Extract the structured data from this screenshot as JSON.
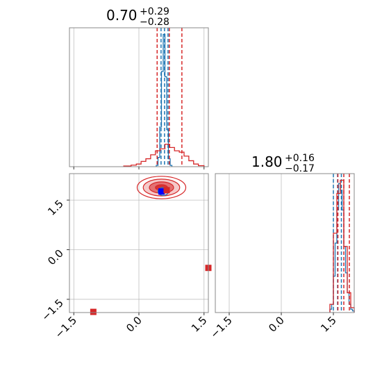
{
  "colors": {
    "red": "#d62728",
    "blue": "#1f77b4",
    "frame": "#888888"
  },
  "chart_data": [
    {
      "type": "histogram",
      "panel": "top-left",
      "parameter_index": 0,
      "title": {
        "median": "0.70",
        "plus": "+0.29",
        "minus": "−0.28"
      },
      "xlim": [
        -1.6,
        1.6
      ],
      "xticks": [
        -1.5,
        0.0,
        1.5
      ],
      "grid": true,
      "series": [
        {
          "color": "#1f77b4",
          "bin_edges": [
            0.4,
            0.44,
            0.48,
            0.52,
            0.56,
            0.6,
            0.64,
            0.68,
            0.72,
            0.76
          ],
          "heights": [
            0.01,
            0.07,
            0.3,
            0.72,
            1.0,
            0.68,
            0.28,
            0.06,
            0.01
          ],
          "quantiles": [
            0.51,
            0.59,
            0.67
          ]
        },
        {
          "color": "#d62728",
          "bin_edges": [
            -0.35,
            -0.18,
            -0.06,
            0.05,
            0.16,
            0.27,
            0.38,
            0.49,
            0.6,
            0.71,
            0.82,
            0.93,
            1.04,
            1.15,
            1.26,
            1.37,
            1.5
          ],
          "heights": [
            0.005,
            0.012,
            0.02,
            0.04,
            0.06,
            0.09,
            0.12,
            0.135,
            0.17,
            0.145,
            0.12,
            0.11,
            0.08,
            0.045,
            0.02,
            0.008
          ],
          "quantiles": [
            0.42,
            0.7,
            0.99
          ]
        }
      ]
    },
    {
      "type": "histogram",
      "panel": "bottom-right",
      "parameter_index": 1,
      "title": {
        "median": "1.80",
        "plus": "+0.16",
        "minus": "−0.17"
      },
      "xlim": [
        -1.9,
        2.1
      ],
      "xticks": [
        -1.5,
        0.0,
        1.5
      ],
      "grid": true,
      "series": [
        {
          "color": "#1f77b4",
          "bin_edges": [
            1.4,
            1.45,
            1.5,
            1.55,
            1.6,
            1.65,
            1.7,
            1.75,
            1.8,
            1.85,
            1.9,
            1.95,
            2.0,
            2.05,
            2.1
          ],
          "heights": [
            0.02,
            0.05,
            0.22,
            0.42,
            0.62,
            0.78,
            0.74,
            0.62,
            0.4,
            0.24,
            0.12,
            0.05,
            0.02,
            0.01
          ],
          "quantiles": [
            1.5,
            1.62,
            1.73
          ]
        },
        {
          "color": "#d62728",
          "bin_edges": [
            1.4,
            1.5,
            1.6,
            1.7,
            1.8,
            1.9,
            2.0,
            2.1
          ],
          "heights": [
            0.05,
            0.48,
            0.72,
            0.8,
            0.4,
            0.12,
            0.03
          ],
          "quantiles": [
            1.63,
            1.8,
            1.96
          ]
        }
      ]
    },
    {
      "type": "contour",
      "panel": "bottom-left",
      "xlim": [
        -1.6,
        1.6
      ],
      "ylim": [
        -1.9,
        2.3
      ],
      "xticks": [
        -1.5,
        0.0,
        1.5
      ],
      "yticks": [
        -1.5,
        0.0,
        1.5
      ],
      "grid": true,
      "red_contours": {
        "center": [
          0.52,
          1.88
        ],
        "sigma": [
          0.28,
          0.17
        ],
        "levels": [
          0.5,
          1.0,
          1.5,
          2.0
        ],
        "fill_opacity": [
          0.85,
          0.55,
          0.25,
          0.0
        ]
      },
      "blue_contours": {
        "center": [
          0.56,
          1.76
        ],
        "sigma": [
          0.06,
          0.06
        ],
        "levels": [
          1.0,
          2.0
        ]
      },
      "markers": [
        {
          "x": 0.52,
          "y": 1.76,
          "color": "#0000ff"
        },
        {
          "x": 0.64,
          "y": 1.8,
          "color": "#d62728"
        },
        {
          "x": -1.05,
          "y": -1.88,
          "color": "#d62728"
        },
        {
          "x": 1.6,
          "y": -0.55,
          "color": "#d62728"
        }
      ]
    }
  ]
}
